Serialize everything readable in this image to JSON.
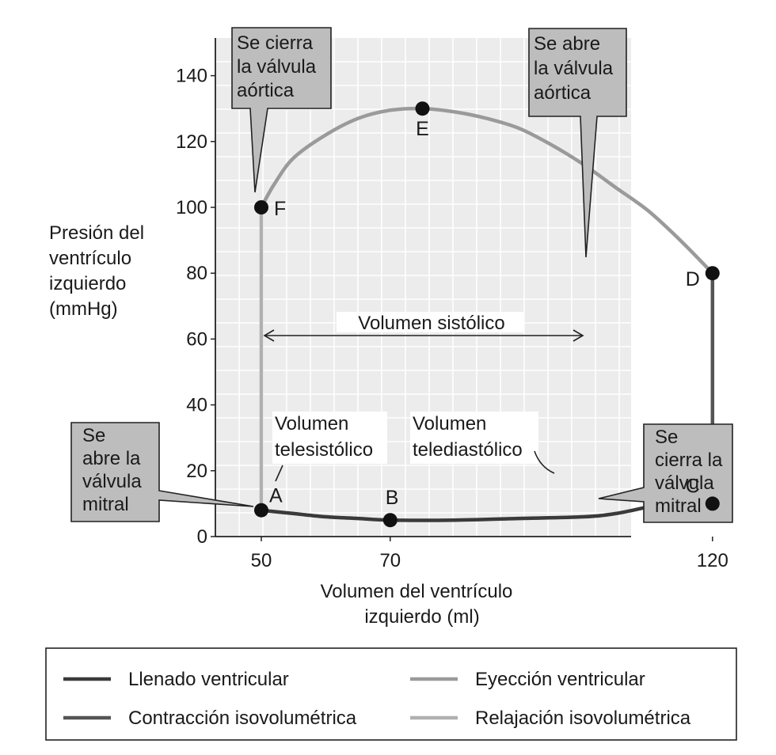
{
  "chart_data": {
    "type": "line",
    "title": "",
    "xlabel": [
      "Volumen del ventrículo",
      "izquierdo (ml)"
    ],
    "ylabel": [
      "Presión del",
      "ventrículo",
      "izquierdo",
      "(mmHg)"
    ],
    "xlim": [
      40,
      130
    ],
    "ylim": [
      0,
      150
    ],
    "grid": true,
    "x_ticks": [
      50,
      70,
      120
    ],
    "y_ticks": [
      0,
      20,
      40,
      60,
      80,
      100,
      120,
      140
    ],
    "points": [
      {
        "label": "A",
        "x": 50,
        "y": 8
      },
      {
        "label": "B",
        "x": 70,
        "y": 5
      },
      {
        "label": "C",
        "x": 120,
        "y": 10
      },
      {
        "label": "D",
        "x": 120,
        "y": 80
      },
      {
        "label": "E",
        "x": 75,
        "y": 130
      },
      {
        "label": "F",
        "x": 50,
        "y": 100
      }
    ],
    "series": [
      {
        "name": "Llenado ventricular",
        "color": "#3a3a3a",
        "x": [
          50,
          55,
          60,
          65,
          70,
          80,
          90,
          100,
          105,
          110,
          113,
          116,
          120
        ],
        "y": [
          8,
          7,
          6,
          5.5,
          5,
          5,
          5.5,
          6,
          7,
          9,
          10,
          10,
          10
        ]
      },
      {
        "name": "Contracción isovolumétrica",
        "color": "#555555",
        "x": [
          120,
          120
        ],
        "y": [
          10,
          80
        ]
      },
      {
        "name": "Eyección ventricular",
        "color": "#9a9a9a",
        "x": [
          120,
          115,
          110,
          105,
          100,
          95,
          90,
          85,
          80,
          75,
          70,
          65,
          60,
          55,
          52,
          50
        ],
        "y": [
          80,
          90,
          99,
          106,
          113,
          119,
          124,
          127,
          129,
          130,
          129.5,
          127,
          122,
          115,
          107,
          100
        ]
      },
      {
        "name": "Relajación isovolumétrica",
        "color": "#b0b0b0",
        "x": [
          50,
          50
        ],
        "y": [
          100,
          8
        ]
      }
    ],
    "annotations": {
      "stroke_volume": "Volumen sistólico",
      "telesistolico": [
        "Volumen",
        "telesistólico"
      ],
      "telediastolico": [
        "Volumen",
        "telediastólico"
      ],
      "callout_aortic_close": [
        "Se cierra",
        "la válvula",
        "aórtica"
      ],
      "callout_aortic_open": [
        "Se abre",
        "la válvula",
        "aórtica"
      ],
      "callout_mitral_open": [
        "Se",
        "abre la",
        "válvula",
        "mitral"
      ],
      "callout_mitral_close": [
        "Se",
        "cierra la",
        "válvula",
        "mitral"
      ]
    },
    "legend_position": "bottom"
  }
}
